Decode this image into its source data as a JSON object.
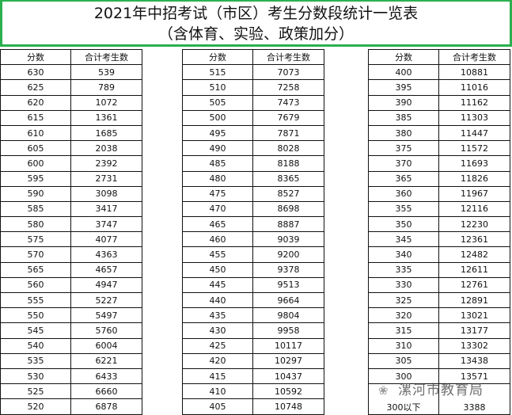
{
  "title": {
    "line1": "2021年中招考试（市区）考生分数段统计一览表",
    "line2": "（含体育、实验、政策加分）"
  },
  "headers": {
    "score": "分数",
    "count": "合计考生数"
  },
  "tables": [
    [
      [
        "630",
        "539"
      ],
      [
        "625",
        "789"
      ],
      [
        "620",
        "1072"
      ],
      [
        "615",
        "1361"
      ],
      [
        "610",
        "1685"
      ],
      [
        "605",
        "2038"
      ],
      [
        "600",
        "2392"
      ],
      [
        "595",
        "2731"
      ],
      [
        "590",
        "3098"
      ],
      [
        "585",
        "3417"
      ],
      [
        "580",
        "3747"
      ],
      [
        "575",
        "4077"
      ],
      [
        "570",
        "4363"
      ],
      [
        "565",
        "4657"
      ],
      [
        "560",
        "4947"
      ],
      [
        "555",
        "5227"
      ],
      [
        "550",
        "5497"
      ],
      [
        "545",
        "5760"
      ],
      [
        "540",
        "6004"
      ],
      [
        "535",
        "6221"
      ],
      [
        "530",
        "6433"
      ],
      [
        "525",
        "6660"
      ],
      [
        "520",
        "6878"
      ]
    ],
    [
      [
        "515",
        "7073"
      ],
      [
        "510",
        "7258"
      ],
      [
        "505",
        "7473"
      ],
      [
        "500",
        "7679"
      ],
      [
        "495",
        "7871"
      ],
      [
        "490",
        "8028"
      ],
      [
        "485",
        "8188"
      ],
      [
        "480",
        "8365"
      ],
      [
        "475",
        "8527"
      ],
      [
        "470",
        "8698"
      ],
      [
        "465",
        "8887"
      ],
      [
        "460",
        "9039"
      ],
      [
        "455",
        "9200"
      ],
      [
        "450",
        "9378"
      ],
      [
        "445",
        "9513"
      ],
      [
        "440",
        "9664"
      ],
      [
        "435",
        "9804"
      ],
      [
        "430",
        "9958"
      ],
      [
        "425",
        "10117"
      ],
      [
        "420",
        "10297"
      ],
      [
        "415",
        "10437"
      ],
      [
        "410",
        "10592"
      ],
      [
        "405",
        "10748"
      ]
    ],
    [
      [
        "400",
        "10881"
      ],
      [
        "395",
        "11016"
      ],
      [
        "390",
        "11162"
      ],
      [
        "385",
        "11303"
      ],
      [
        "380",
        "11447"
      ],
      [
        "375",
        "11572"
      ],
      [
        "370",
        "11693"
      ],
      [
        "365",
        "11826"
      ],
      [
        "360",
        "11967"
      ],
      [
        "355",
        "12116"
      ],
      [
        "350",
        "12230"
      ],
      [
        "345",
        "12361"
      ],
      [
        "340",
        "12482"
      ],
      [
        "335",
        "12611"
      ],
      [
        "330",
        "12761"
      ],
      [
        "325",
        "12891"
      ],
      [
        "320",
        "13021"
      ],
      [
        "315",
        "13177"
      ],
      [
        "310",
        "13302"
      ],
      [
        "305",
        "13438"
      ],
      [
        "300",
        "13571"
      ],
      [
        "300以下",
        "3388"
      ]
    ]
  ],
  "watermark": {
    "text": "漯河市教育局",
    "icon": "wechat-icon"
  },
  "colors": {
    "border_accent": "#2bb04f"
  }
}
